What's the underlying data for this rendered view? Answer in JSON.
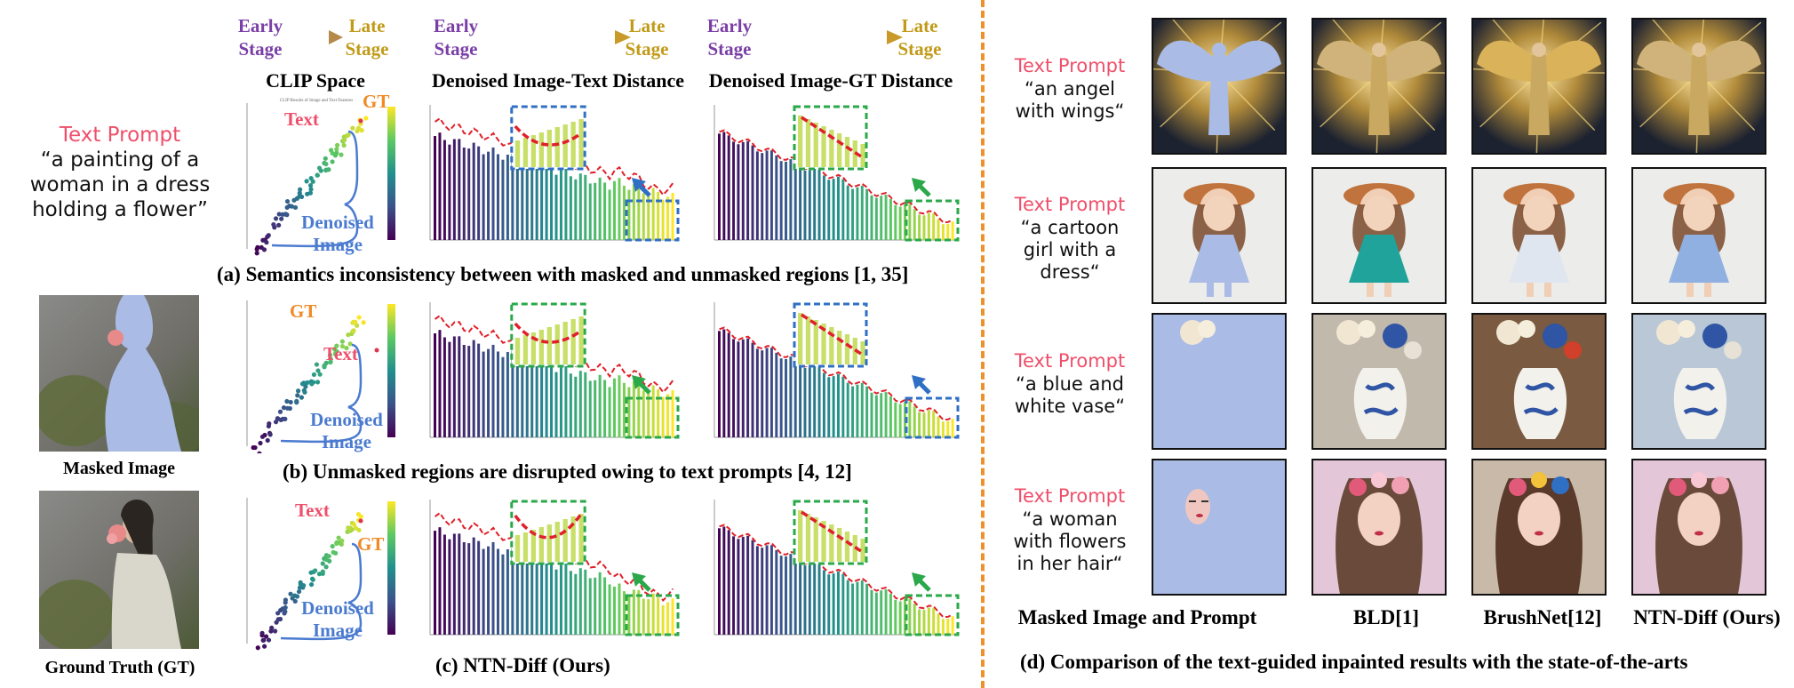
{
  "headers": {
    "stage_early": "Early\nStage",
    "stage_late": "Late\nStage",
    "col1": "CLIP Space",
    "col2": "Denoised Image-Text Distance",
    "col3": "Denoised Image-GT Distance"
  },
  "left": {
    "prompt_title": "Text Prompt",
    "prompt_text": "“a painting of a woman in a dress holding a flower”",
    "masked_label": "Masked Image",
    "gt_label": "Ground Truth (GT)"
  },
  "annotations": {
    "text": "Text",
    "gt": "GT",
    "denoised": "Denoised\nImage"
  },
  "captions": {
    "a": "(a) Semantics inconsistency between with masked and unmasked regions [1, 35]",
    "b": "(b) Unmasked regions are disrupted owing to text prompts [4, 12]",
    "c": "(c) NTN-Diff (Ours)",
    "d": "(d) Comparison of the text-guided inpainted results with the state-of-the-arts"
  },
  "right": {
    "rows": [
      {
        "title": "Text Prompt",
        "text": "“an angel\nwith wings“"
      },
      {
        "title": "Text Prompt",
        "text": "“a cartoon\ngirl with a\ndress“"
      },
      {
        "title": "Text Prompt",
        "text": "“a blue and\nwhite vase“"
      },
      {
        "title": "Text Prompt",
        "text": "“a woman\nwith flowers\nin her hair“"
      }
    ],
    "col_labels": [
      "Masked Image and Prompt",
      "BLD[1]",
      "BrushNet[12]",
      "NTN-Diff (Ours)"
    ]
  },
  "colors": {
    "early": "#7a3fa6",
    "late": "#c19a17",
    "accent_red": "#ee4f6a",
    "divider": "#f0902a",
    "mask_blue": "#aabbe6",
    "box_blue": "#2f6fc4",
    "box_green": "#2aa84a"
  },
  "chart_data": [
    {
      "type": "scatter",
      "title": "CLIP Space"
    },
    {
      "type": "bar",
      "title": "Denoised Image-Text Distance"
    },
    {
      "type": "bar",
      "title": "Denoised Image-GT Distance"
    }
  ]
}
